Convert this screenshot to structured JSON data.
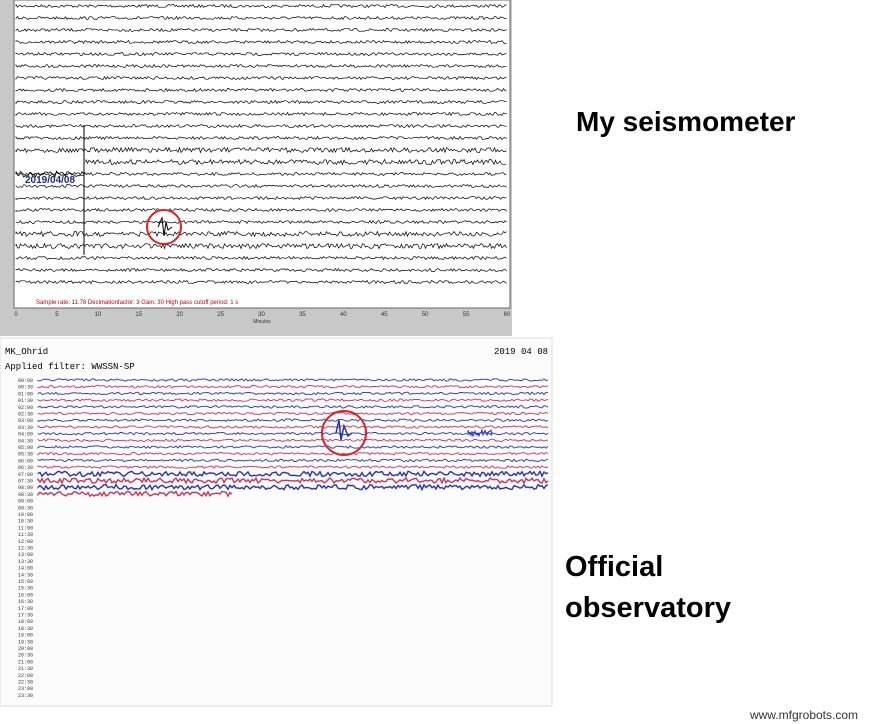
{
  "labels": {
    "mine": "My seismometer",
    "official": [
      "Official",
      "observatory"
    ],
    "watermark": "www.mfgrobots.com"
  },
  "my_seismogram": {
    "date": "2019/04/08",
    "info": "Sample rate: 11.78  Decimationfactor: 3  Gain: 30  High pass cutoff period: 1 s",
    "xticks": [
      "0",
      "5",
      "10",
      "15",
      "20",
      "25",
      "30",
      "35",
      "40",
      "45",
      "50",
      "55",
      "60"
    ],
    "xlabel": "Minutes"
  },
  "official_seismogram": {
    "station": "MK_Ohrid",
    "date": "2019 04 08",
    "filter": "Applied filter: WWSSN-SP",
    "times": [
      "00:00",
      "00:30",
      "01:00",
      "01:30",
      "02:00",
      "02:30",
      "03:00",
      "03:30",
      "04:00",
      "04:30",
      "05:00",
      "05:30",
      "06:00",
      "06:30",
      "07:00",
      "07:30",
      "08:00",
      "08:30",
      "09:00",
      "09:30",
      "10:00",
      "10:30",
      "11:00",
      "11:30",
      "12:00",
      "12:30",
      "13:00",
      "13:30",
      "14:00",
      "14:30",
      "15:00",
      "15:30",
      "16:00",
      "16:30",
      "17:00",
      "17:30",
      "18:00",
      "18:30",
      "19:00",
      "19:30",
      "20:00",
      "20:30",
      "21:00",
      "21:30",
      "22:00",
      "22:30",
      "23:00",
      "23:30"
    ]
  }
}
